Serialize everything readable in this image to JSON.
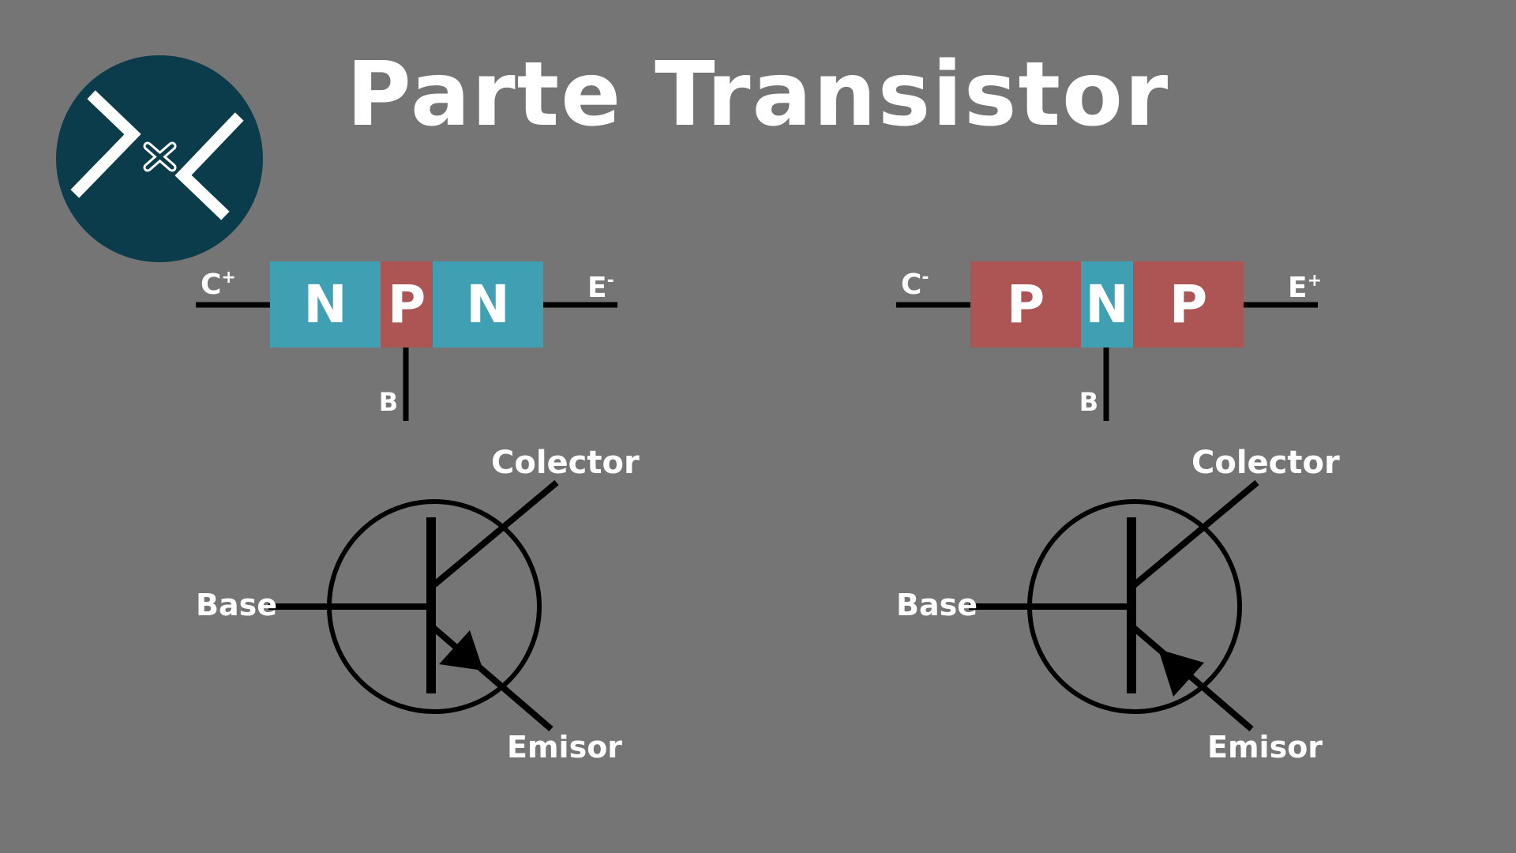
{
  "title": "Parte Transistor",
  "colors": {
    "background": "#757575",
    "n_region": "#3fa0b3",
    "p_region": "#ad5454",
    "wire": "#000000",
    "text": "#ffffff",
    "logo_circle": "#0b3c4b"
  },
  "logo": {
    "icon": "transistor-x-logo-icon"
  },
  "npn": {
    "layers": [
      "N",
      "P",
      "N"
    ],
    "collector_terminal": "C",
    "collector_sign": "+",
    "emitter_terminal": "E",
    "emitter_sign": "-",
    "base_terminal": "B",
    "symbol": {
      "base_label": "Base",
      "collector_label": "Colector",
      "emitter_label": "Emisor"
    }
  },
  "pnp": {
    "layers": [
      "P",
      "N",
      "P"
    ],
    "collector_terminal": "C",
    "collector_sign": "-",
    "emitter_terminal": "E",
    "emitter_sign": "+",
    "base_terminal": "B",
    "symbol": {
      "base_label": "Base",
      "collector_label": "Colector",
      "emitter_label": "Emisor"
    }
  }
}
